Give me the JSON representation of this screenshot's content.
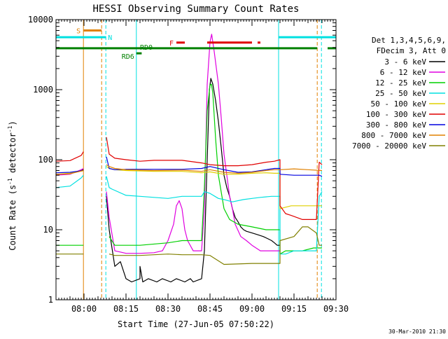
{
  "chart_data": {
    "type": "line",
    "title": "HESSI Observing Summary Count Rates",
    "xlabel": "Start Time (27-Jun-05 07:50:22)",
    "ylabel": "Count Rate (s⁻¹ detector⁻¹)",
    "ylabel_main": "Count Rate (s",
    "ylabel_sup1": "-1",
    "ylabel_mid": " detector",
    "ylabel_sup2": "-1",
    "ylabel_end": ")",
    "x_unit": "minutes since 07:50",
    "xlim": [
      0,
      100
    ],
    "ylim": [
      1,
      10000
    ],
    "yscale": "log",
    "xticks": [
      {
        "x": 10,
        "label": "08:00"
      },
      {
        "x": 25,
        "label": "08:15"
      },
      {
        "x": 40,
        "label": "08:30"
      },
      {
        "x": 55,
        "label": "08:45"
      },
      {
        "x": 70,
        "label": "09:00"
      },
      {
        "x": 85,
        "label": "09:15"
      },
      {
        "x": 100,
        "label": "09:30"
      }
    ],
    "yticks": [
      {
        "y": 1,
        "label": "1"
      },
      {
        "y": 10,
        "label": "10"
      },
      {
        "y": 100,
        "label": "100"
      },
      {
        "y": 1000,
        "label": "1000"
      },
      {
        "y": 10000,
        "label": "10000"
      }
    ],
    "legend": {
      "position": "right",
      "header": [
        "Det 1,3,4,5,6,9,",
        "FDecim 3, Att 0"
      ]
    },
    "series": [
      {
        "name": "3 - 6 keV",
        "color": "#000000",
        "points": [
          [
            0,
            62
          ],
          [
            5,
            63
          ],
          [
            9,
            70
          ],
          [
            9.8,
            72
          ],
          [
            null,
            null
          ],
          [
            18,
            30
          ],
          [
            19,
            10
          ],
          [
            21,
            3
          ],
          [
            23,
            3.5
          ],
          [
            25,
            2
          ],
          [
            27,
            1.8
          ],
          [
            30,
            2
          ],
          [
            30,
            3
          ],
          [
            31,
            1.8
          ],
          [
            33,
            2
          ],
          [
            36,
            1.8
          ],
          [
            38,
            2
          ],
          [
            41,
            1.8
          ],
          [
            43,
            2
          ],
          [
            46,
            1.8
          ],
          [
            48,
            2
          ],
          [
            49,
            1.8
          ],
          [
            52,
            2
          ],
          [
            53,
            5
          ],
          [
            54,
            100
          ],
          [
            54.8,
            1000
          ],
          [
            55.3,
            1450
          ],
          [
            56,
            1200
          ],
          [
            57,
            700
          ],
          [
            58,
            350
          ],
          [
            59,
            150
          ],
          [
            60,
            60
          ],
          [
            61,
            40
          ],
          [
            62,
            30
          ],
          [
            63,
            20
          ],
          [
            64,
            15
          ],
          [
            65,
            13
          ],
          [
            66,
            11
          ],
          [
            67,
            10
          ],
          [
            68,
            9.5
          ],
          [
            70,
            9
          ],
          [
            72,
            8.5
          ],
          [
            74,
            8
          ],
          [
            75.5,
            7.5
          ],
          [
            77,
            7
          ],
          [
            78,
            6.5
          ],
          [
            79,
            6
          ],
          [
            80,
            6
          ]
        ]
      },
      {
        "name": "6 - 12 keV",
        "color": "#e000e0",
        "points": [
          [
            0,
            60
          ],
          [
            5,
            62
          ],
          [
            9,
            72
          ],
          [
            9.8,
            75
          ],
          [
            null,
            null
          ],
          [
            18,
            35
          ],
          [
            19,
            15
          ],
          [
            21,
            5
          ],
          [
            25,
            4.6
          ],
          [
            30,
            4.6
          ],
          [
            35,
            4.7
          ],
          [
            38,
            5
          ],
          [
            40,
            7
          ],
          [
            42,
            12
          ],
          [
            43,
            22
          ],
          [
            44,
            26
          ],
          [
            45,
            20
          ],
          [
            46,
            10
          ],
          [
            47,
            7
          ],
          [
            49,
            5
          ],
          [
            52,
            5
          ],
          [
            53,
            20
          ],
          [
            54,
            1200
          ],
          [
            55,
            4800
          ],
          [
            55.6,
            6200
          ],
          [
            56.5,
            3500
          ],
          [
            58,
            1200
          ],
          [
            59,
            400
          ],
          [
            60,
            120
          ],
          [
            61,
            60
          ],
          [
            62,
            30
          ],
          [
            63,
            20
          ],
          [
            64,
            12
          ],
          [
            66,
            8
          ],
          [
            68,
            7
          ],
          [
            70,
            6
          ],
          [
            73,
            5
          ],
          [
            76,
            5
          ],
          [
            80,
            5
          ]
        ]
      },
      {
        "name": "12 - 25 keV",
        "color": "#00d000",
        "points": [
          [
            0,
            6
          ],
          [
            5,
            6
          ],
          [
            9.8,
            6
          ],
          [
            null,
            null
          ],
          [
            19,
            8
          ],
          [
            21,
            6
          ],
          [
            25,
            6
          ],
          [
            30,
            6
          ],
          [
            40,
            6.5
          ],
          [
            45,
            7
          ],
          [
            52,
            7
          ],
          [
            53,
            40
          ],
          [
            54,
            500
          ],
          [
            55,
            1150
          ],
          [
            55.5,
            1200
          ],
          [
            56,
            900
          ],
          [
            57,
            200
          ],
          [
            58,
            60
          ],
          [
            60,
            20
          ],
          [
            62,
            14
          ],
          [
            65,
            12
          ],
          [
            70,
            11
          ],
          [
            75,
            10
          ],
          [
            80,
            10
          ],
          [
            80,
            4.5
          ],
          [
            82,
            5
          ],
          [
            85,
            5
          ],
          [
            88,
            5
          ],
          [
            92,
            5.5
          ],
          [
            95,
            5.5
          ]
        ]
      },
      {
        "name": "25 - 50 keV",
        "color": "#00e0e0",
        "points": [
          [
            0,
            40
          ],
          [
            5,
            42
          ],
          [
            9,
            55
          ],
          [
            9.8,
            60
          ],
          [
            null,
            null
          ],
          [
            18,
            58
          ],
          [
            19,
            40
          ],
          [
            20,
            38
          ],
          [
            25,
            31
          ],
          [
            30,
            30
          ],
          [
            35,
            29
          ],
          [
            40,
            28
          ],
          [
            45,
            30
          ],
          [
            52,
            30
          ],
          [
            53,
            35
          ],
          [
            55,
            33
          ],
          [
            58,
            28
          ],
          [
            60,
            27
          ],
          [
            63,
            25
          ],
          [
            67,
            27
          ],
          [
            70,
            28
          ],
          [
            73,
            29
          ],
          [
            77,
            30
          ],
          [
            78,
            30
          ],
          [
            80,
            30
          ],
          [
            80,
            4.5
          ],
          [
            82,
            4.5
          ],
          [
            85,
            5
          ],
          [
            90,
            5
          ],
          [
            93,
            5
          ],
          [
            94,
            30
          ],
          [
            95,
            35
          ]
        ]
      },
      {
        "name": "50 - 100 keV",
        "color": "#e0d000",
        "points": [
          [
            0,
            62
          ],
          [
            5,
            64
          ],
          [
            9.8,
            70
          ],
          [
            null,
            null
          ],
          [
            18,
            80
          ],
          [
            19,
            75
          ],
          [
            21,
            72
          ],
          [
            25,
            70
          ],
          [
            35,
            68
          ],
          [
            45,
            68
          ],
          [
            52,
            65
          ],
          [
            55,
            67
          ],
          [
            60,
            62
          ],
          [
            65,
            62
          ],
          [
            70,
            64
          ],
          [
            75,
            65
          ],
          [
            78,
            64
          ],
          [
            80,
            64
          ],
          [
            80,
            20
          ],
          [
            84,
            22
          ],
          [
            90,
            22
          ],
          [
            94,
            22
          ],
          [
            95,
            22
          ]
        ]
      },
      {
        "name": "100 - 300 keV",
        "color": "#e00000",
        "points": [
          [
            0,
            95
          ],
          [
            5,
            97
          ],
          [
            9,
            115
          ],
          [
            9.8,
            130
          ],
          [
            null,
            null
          ],
          [
            18,
            210
          ],
          [
            19,
            120
          ],
          [
            21,
            105
          ],
          [
            25,
            100
          ],
          [
            30,
            95
          ],
          [
            35,
            98
          ],
          [
            40,
            98
          ],
          [
            45,
            98
          ],
          [
            52,
            90
          ],
          [
            55,
            85
          ],
          [
            60,
            82
          ],
          [
            65,
            82
          ],
          [
            70,
            85
          ],
          [
            75,
            92
          ],
          [
            78,
            95
          ],
          [
            80,
            100
          ],
          [
            80,
            22
          ],
          [
            82,
            17
          ],
          [
            84,
            16
          ],
          [
            88,
            14
          ],
          [
            92,
            14
          ],
          [
            93,
            14
          ],
          [
            94,
            92
          ],
          [
            95,
            85
          ]
        ]
      },
      {
        "name": "300 - 800 keV",
        "color": "#0000e0",
        "points": [
          [
            0,
            65
          ],
          [
            5,
            66
          ],
          [
            9.8,
            70
          ],
          [
            null,
            null
          ],
          [
            18,
            110
          ],
          [
            19,
            75
          ],
          [
            21,
            72
          ],
          [
            25,
            73
          ],
          [
            35,
            73
          ],
          [
            45,
            73
          ],
          [
            52,
            75
          ],
          [
            55,
            80
          ],
          [
            60,
            72
          ],
          [
            65,
            66
          ],
          [
            70,
            67
          ],
          [
            75,
            72
          ],
          [
            78,
            75
          ],
          [
            80,
            75
          ],
          [
            80,
            62
          ],
          [
            85,
            60
          ],
          [
            90,
            60
          ],
          [
            94,
            60
          ],
          [
            95,
            58
          ]
        ]
      },
      {
        "name": "800 - 7000 keV",
        "color": "#e08000",
        "points": [
          [
            0,
            62
          ],
          [
            5,
            63
          ],
          [
            9.8,
            70
          ],
          [
            null,
            null
          ],
          [
            18,
            85
          ],
          [
            19,
            80
          ],
          [
            21,
            75
          ],
          [
            25,
            72
          ],
          [
            35,
            70
          ],
          [
            45,
            71
          ],
          [
            52,
            68
          ],
          [
            55,
            72
          ],
          [
            60,
            66
          ],
          [
            65,
            64
          ],
          [
            70,
            66
          ],
          [
            75,
            70
          ],
          [
            78,
            72
          ],
          [
            80,
            72
          ],
          [
            80,
            72
          ],
          [
            85,
            74
          ],
          [
            90,
            72
          ],
          [
            95,
            70
          ]
        ]
      },
      {
        "name": "7000 - 20000 keV",
        "color": "#808000",
        "points": [
          [
            0,
            4.5
          ],
          [
            5,
            4.5
          ],
          [
            9.8,
            4.5
          ],
          [
            null,
            null
          ],
          [
            19,
            4.5
          ],
          [
            21,
            4.3
          ],
          [
            25,
            4.3
          ],
          [
            30,
            4.3
          ],
          [
            40,
            4.5
          ],
          [
            45,
            4.4
          ],
          [
            52,
            4.4
          ],
          [
            55,
            4.3
          ],
          [
            60,
            3.2
          ],
          [
            70,
            3.3
          ],
          [
            75,
            3.3
          ],
          [
            78,
            3.3
          ],
          [
            80,
            3.3
          ],
          [
            80,
            7
          ],
          [
            85,
            8
          ],
          [
            88,
            11
          ],
          [
            90,
            11
          ],
          [
            93,
            9
          ],
          [
            94,
            6
          ],
          [
            95,
            6
          ]
        ]
      }
    ],
    "vertical_lines": [
      {
        "x": 0,
        "color": "#00e0e0",
        "style": "solid"
      },
      {
        "x": 9.8,
        "color": "#e08000",
        "style": "solid"
      },
      {
        "x": 16.3,
        "color": "#e08000",
        "style": "dashed"
      },
      {
        "x": 17.8,
        "color": "#00e0e0",
        "style": "dashed"
      },
      {
        "x": 28.7,
        "color": "#00e0e0",
        "style": "solid"
      },
      {
        "x": 79.5,
        "color": "#00e0e0",
        "style": "solid"
      },
      {
        "x": 93.3,
        "color": "#e08000",
        "style": "dashed"
      },
      {
        "x": 94.8,
        "color": "#00e0e0",
        "style": "dashed"
      }
    ],
    "flag_bars": [
      {
        "label": "S",
        "color": "#e08000",
        "y": 7000,
        "segments": [
          [
            9.8,
            16.3
          ]
        ]
      },
      {
        "label": "N",
        "color": "#00e0e0",
        "y": 5600,
        "segments": [
          [
            0,
            17.8
          ],
          [
            79.5,
            100
          ]
        ]
      },
      {
        "label": "F",
        "color": "#e00000",
        "y": 4700,
        "segments": [
          [
            43,
            46
          ],
          [
            54,
            70
          ],
          [
            72,
            73
          ]
        ]
      },
      {
        "label": "RD0",
        "color": "#008000",
        "y": 3900,
        "segments": [
          [
            0,
            79.5
          ],
          [
            79.5,
            93.3
          ],
          [
            97,
            100
          ]
        ]
      },
      {
        "label": "RD6",
        "color": "#008000",
        "y": 3300,
        "segments": [
          [
            28.7,
            30.6
          ]
        ]
      }
    ]
  },
  "footer_timestamp": "30-Mar-2010 21:30"
}
